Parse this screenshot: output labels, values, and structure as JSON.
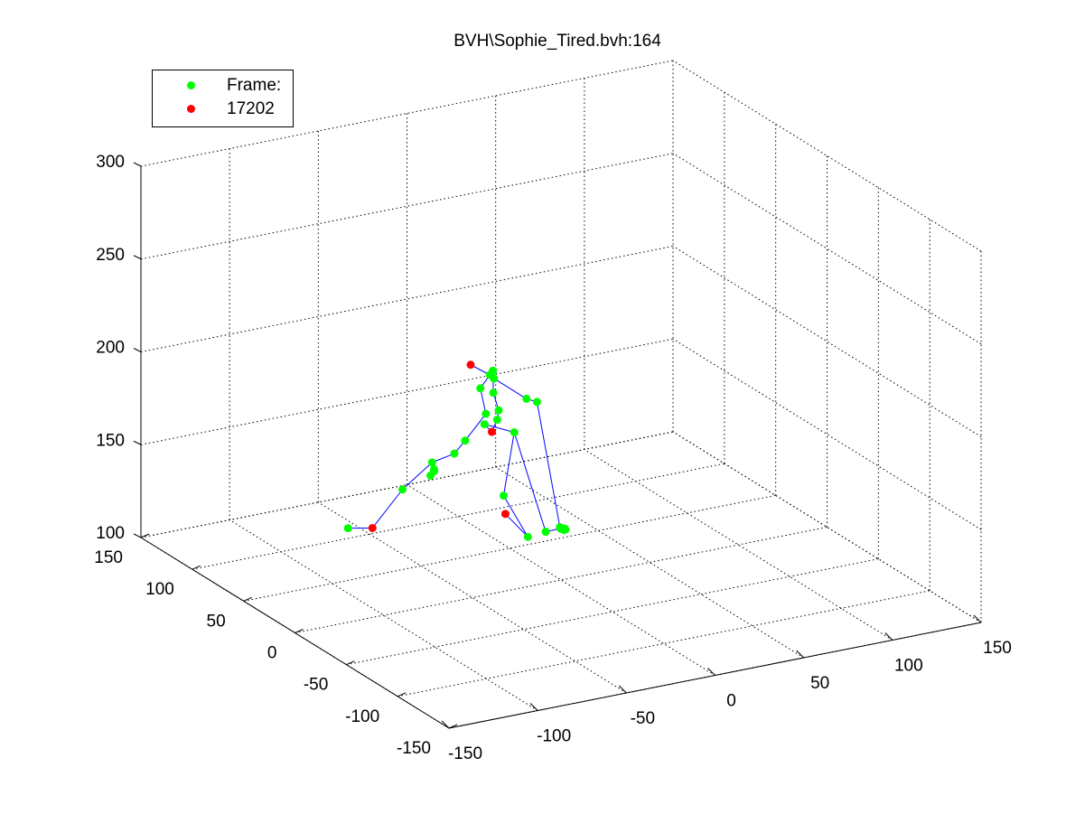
{
  "chart_data": {
    "type": "scatter",
    "title": "BVH\\Sophie_Tired.bvh:164",
    "xlabel": "",
    "ylabel": "",
    "zlabel": "",
    "xlim": [
      -150,
      150
    ],
    "ylim": [
      -150,
      150
    ],
    "zlim": [
      100,
      300
    ],
    "x_ticks": [
      -150,
      -100,
      -50,
      0,
      50,
      100,
      150
    ],
    "y_ticks": [
      -150,
      -100,
      -50,
      0,
      50,
      100,
      150
    ],
    "z_ticks": [
      100,
      150,
      200,
      250,
      300
    ],
    "grid": true,
    "legend_position": "top-left",
    "series": [
      {
        "name": "Frame:",
        "marker": "dot",
        "color": "#00ff00",
        "points": [
          [
            -17,
            40,
            200
          ],
          [
            -14,
            42,
            201
          ],
          [
            -13,
            44,
            200
          ],
          [
            -10,
            48,
            194
          ],
          [
            -20,
            44,
            192
          ],
          [
            -15,
            40,
            190
          ],
          [
            -5,
            25,
            190
          ],
          [
            5,
            32,
            184
          ],
          [
            -25,
            30,
            184
          ],
          [
            -12,
            40,
            180
          ],
          [
            -14,
            38,
            176
          ],
          [
            -20,
            40,
            174
          ],
          [
            -9,
            30,
            171
          ],
          [
            -28,
            45,
            165
          ],
          [
            -30,
            52,
            156
          ],
          [
            -38,
            60,
            150
          ],
          [
            -38,
            58,
            147
          ],
          [
            -38,
            58,
            146
          ],
          [
            -40,
            58,
            144
          ],
          [
            -50,
            68,
            135
          ],
          [
            -68,
            90,
            110
          ],
          [
            -15,
            30,
            138
          ],
          [
            -10,
            15,
            120
          ],
          [
            -4,
            8,
            124
          ],
          [
            2,
            4,
            126
          ],
          [
            5,
            5,
            125
          ],
          [
            5,
            6,
            124
          ],
          [
            6,
            6,
            124
          ],
          [
            4,
            8,
            125
          ]
        ]
      },
      {
        "name": "17202",
        "marker": "dot",
        "color": "#ff0000",
        "points": [
          [
            -22,
            50,
            203
          ],
          [
            -17,
            38,
            170
          ],
          [
            -60,
            80,
            112
          ],
          [
            -14,
            30,
            128
          ]
        ]
      }
    ],
    "bones": [
      [
        [
          -22,
          50,
          203
        ],
        [
          -17,
          40,
          200
        ]
      ],
      [
        [
          -17,
          40,
          200
        ],
        [
          -20,
          44,
          192
        ]
      ],
      [
        [
          -20,
          44,
          192
        ],
        [
          -25,
          30,
          184
        ]
      ],
      [
        [
          -25,
          30,
          184
        ],
        [
          -28,
          45,
          165
        ]
      ],
      [
        [
          -14,
          42,
          201
        ],
        [
          -15,
          40,
          190
        ]
      ],
      [
        [
          -15,
          40,
          190
        ],
        [
          -12,
          40,
          180
        ]
      ],
      [
        [
          -12,
          40,
          180
        ],
        [
          -14,
          38,
          176
        ]
      ],
      [
        [
          -14,
          38,
          176
        ],
        [
          -17,
          38,
          170
        ]
      ],
      [
        [
          -13,
          44,
          200
        ],
        [
          -10,
          48,
          194
        ]
      ],
      [
        [
          -10,
          48,
          194
        ],
        [
          -5,
          25,
          190
        ]
      ],
      [
        [
          -5,
          25,
          190
        ],
        [
          5,
          32,
          184
        ]
      ],
      [
        [
          5,
          32,
          184
        ],
        [
          4,
          8,
          125
        ]
      ],
      [
        [
          -17,
          38,
          170
        ],
        [
          -20,
          40,
          174
        ]
      ],
      [
        [
          -20,
          40,
          174
        ],
        [
          -9,
          30,
          171
        ]
      ],
      [
        [
          -9,
          30,
          171
        ],
        [
          -15,
          30,
          138
        ]
      ],
      [
        [
          -15,
          30,
          138
        ],
        [
          -10,
          15,
          120
        ]
      ],
      [
        [
          -10,
          15,
          120
        ],
        [
          -14,
          30,
          128
        ]
      ],
      [
        [
          -28,
          45,
          165
        ],
        [
          -30,
          52,
          156
        ]
      ],
      [
        [
          -30,
          52,
          156
        ],
        [
          -38,
          60,
          150
        ]
      ],
      [
        [
          -38,
          60,
          150
        ],
        [
          -50,
          68,
          135
        ]
      ],
      [
        [
          -50,
          68,
          135
        ],
        [
          -60,
          80,
          112
        ]
      ],
      [
        [
          -60,
          80,
          112
        ],
        [
          -68,
          90,
          110
        ]
      ],
      [
        [
          -9,
          30,
          171
        ],
        [
          -4,
          8,
          124
        ]
      ],
      [
        [
          -4,
          8,
          124
        ],
        [
          2,
          4,
          126
        ]
      ],
      [
        [
          2,
          4,
          126
        ],
        [
          6,
          6,
          124
        ]
      ]
    ]
  }
}
